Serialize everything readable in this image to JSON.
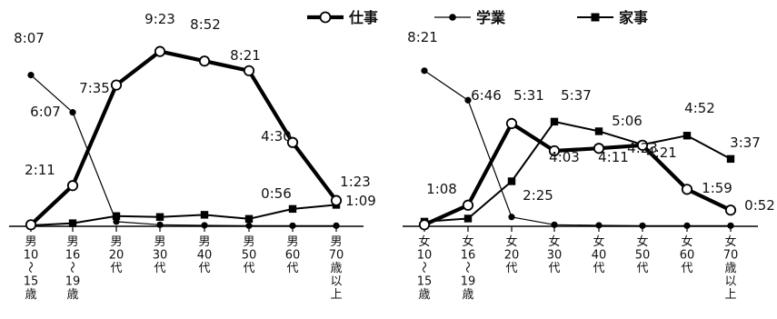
{
  "chart_data": [
    {
      "type": "line",
      "title": "",
      "xlabel": "",
      "ylabel": "",
      "ylim": [
        0,
        600
      ],
      "categories": [
        "男10〜15歳",
        "男16〜19歳",
        "男20代",
        "男30代",
        "男40代",
        "男50代",
        "男60代",
        "男70歳以上"
      ],
      "category_lines": [
        [
          "男",
          "10",
          "〜",
          "15",
          "歳"
        ],
        [
          "男",
          "16",
          "〜",
          "19",
          "歳"
        ],
        [
          "男",
          "20",
          "代"
        ],
        [
          "男",
          "30",
          "代"
        ],
        [
          "男",
          "40",
          "代"
        ],
        [
          "男",
          "50",
          "代"
        ],
        [
          "男",
          "60",
          "代"
        ],
        [
          "男",
          "70",
          "歳",
          "以",
          "上"
        ]
      ],
      "series": [
        {
          "name": "仕事",
          "marker": "open-circle",
          "line": "thick",
          "values": [
            5,
            131,
            455,
            563,
            532,
            501,
            270,
            83
          ],
          "labels": [
            "",
            "2:11",
            "7:35",
            "9:23",
            "8:52",
            "8:21",
            "4:30",
            "1:23"
          ]
        },
        {
          "name": "学業",
          "marker": "dot",
          "line": "thin",
          "values": [
            487,
            367,
            15,
            5,
            3,
            2,
            2,
            2
          ],
          "labels": [
            "8:07",
            "6:07",
            "",
            "",
            "",
            "",
            "",
            ""
          ]
        },
        {
          "name": "家事",
          "marker": "square",
          "line": "medium",
          "values": [
            3,
            10,
            33,
            30,
            37,
            24,
            56,
            69
          ],
          "labels": [
            "",
            "",
            "",
            "",
            "",
            "",
            "0:56",
            "1:09"
          ]
        }
      ]
    },
    {
      "type": "line",
      "title": "",
      "xlabel": "",
      "ylabel": "",
      "ylim": [
        0,
        600
      ],
      "categories": [
        "女10〜15歳",
        "女16〜19歳",
        "女20代",
        "女30代",
        "女40代",
        "女50代",
        "女60代",
        "女70歳以上"
      ],
      "category_lines": [
        [
          "女",
          "10",
          "〜",
          "15",
          "歳"
        ],
        [
          "女",
          "16",
          "〜",
          "19",
          "歳"
        ],
        [
          "女",
          "20",
          "代"
        ],
        [
          "女",
          "30",
          "代"
        ],
        [
          "女",
          "40",
          "代"
        ],
        [
          "女",
          "50",
          "代"
        ],
        [
          "女",
          "60",
          "代"
        ],
        [
          "女",
          "70",
          "歳",
          "以",
          "上"
        ]
      ],
      "series": [
        {
          "name": "仕事",
          "marker": "open-circle",
          "line": "thick",
          "values": [
            5,
            68,
            331,
            243,
            251,
            261,
            119,
            52
          ],
          "labels": [
            "",
            "1:08",
            "5:31",
            "4:03",
            "4:11",
            "4:21",
            "1:59",
            "0:52"
          ]
        },
        {
          "name": "学業",
          "marker": "dot",
          "line": "thin",
          "values": [
            501,
            406,
            30,
            5,
            3,
            2,
            2,
            2
          ],
          "labels": [
            "8:21",
            "6:46",
            "",
            "",
            "",
            "",
            "",
            ""
          ]
        },
        {
          "name": "家事",
          "marker": "square",
          "line": "medium",
          "values": [
            15,
            25,
            145,
            337,
            306,
            263,
            292,
            217
          ],
          "labels": [
            "",
            "",
            "2:25",
            "5:37",
            "5:06",
            "4:23",
            "4:52",
            "3:37"
          ]
        }
      ]
    }
  ],
  "legend": [
    {
      "name": "仕事",
      "marker": "open-circle",
      "line": "thick"
    },
    {
      "name": "学業",
      "marker": "dot",
      "line": "thin"
    },
    {
      "name": "家事",
      "marker": "square",
      "line": "medium"
    }
  ]
}
